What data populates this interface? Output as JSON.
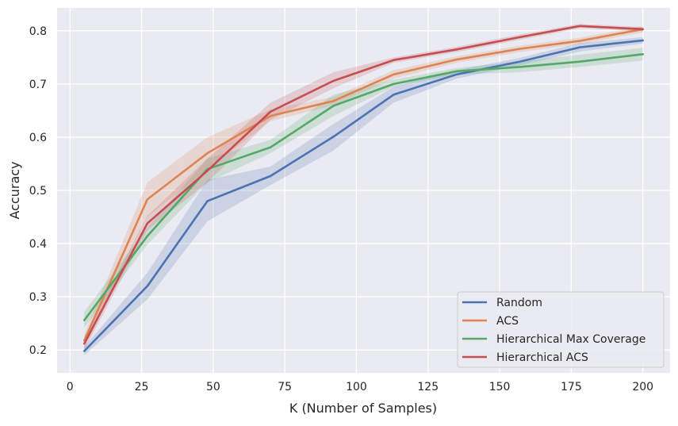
{
  "chart_data": {
    "type": "line",
    "xlabel": "K (Number of Samples)",
    "ylabel": "Accuracy",
    "xlim": [
      -4.5,
      209.5
    ],
    "ylim": [
      0.157,
      0.843
    ],
    "xticks": [
      0,
      25,
      50,
      75,
      100,
      125,
      150,
      175,
      200
    ],
    "xtick_labels": [
      "0",
      "25",
      "50",
      "75",
      "100",
      "125",
      "150",
      "175",
      "200"
    ],
    "yticks": [
      0.2,
      0.3,
      0.4,
      0.5,
      0.6,
      0.7,
      0.8
    ],
    "ytick_labels": [
      "0.2",
      "0.3",
      "0.4",
      "0.5",
      "0.6",
      "0.7",
      "0.8"
    ],
    "grid": true,
    "legend_position": "lower-right",
    "background_color": "#eaeaf2",
    "series": [
      {
        "name": "Random",
        "color": "#4c72b0",
        "x": [
          5,
          27,
          48,
          70,
          92,
          113,
          135,
          157,
          178,
          200
        ],
        "y": [
          0.198,
          0.32,
          0.48,
          0.527,
          0.601,
          0.68,
          0.718,
          0.742,
          0.769,
          0.782
        ],
        "lower": [
          0.19,
          0.295,
          0.442,
          0.51,
          0.575,
          0.665,
          0.71,
          0.735,
          0.761,
          0.776
        ],
        "upper": [
          0.206,
          0.345,
          0.52,
          0.545,
          0.625,
          0.695,
          0.726,
          0.749,
          0.777,
          0.788
        ]
      },
      {
        "name": "ACS",
        "color": "#dd8452",
        "x": [
          5,
          27,
          48,
          70,
          92,
          113,
          135,
          157,
          178,
          200
        ],
        "y": [
          0.218,
          0.483,
          0.57,
          0.64,
          0.668,
          0.718,
          0.746,
          0.766,
          0.781,
          0.803
        ],
        "lower": [
          0.205,
          0.45,
          0.54,
          0.63,
          0.66,
          0.71,
          0.74,
          0.76,
          0.775,
          0.797
        ],
        "upper": [
          0.23,
          0.515,
          0.6,
          0.652,
          0.676,
          0.726,
          0.752,
          0.772,
          0.787,
          0.809
        ]
      },
      {
        "name": "Hierarchical Max Coverage",
        "color": "#55a868",
        "x": [
          5,
          27,
          48,
          70,
          92,
          113,
          135,
          157,
          178,
          200
        ],
        "y": [
          0.256,
          0.414,
          0.54,
          0.581,
          0.659,
          0.7,
          0.724,
          0.732,
          0.742,
          0.756
        ],
        "lower": [
          0.242,
          0.398,
          0.515,
          0.57,
          0.64,
          0.695,
          0.718,
          0.722,
          0.732,
          0.744
        ],
        "upper": [
          0.272,
          0.43,
          0.56,
          0.595,
          0.68,
          0.708,
          0.73,
          0.742,
          0.755,
          0.768
        ]
      },
      {
        "name": "Hierarchical ACS",
        "color": "#c44e52",
        "x": [
          5,
          27,
          48,
          70,
          92,
          113,
          135,
          157,
          178,
          200
        ],
        "y": [
          0.212,
          0.438,
          0.537,
          0.648,
          0.706,
          0.745,
          0.765,
          0.788,
          0.809,
          0.803
        ],
        "lower": [
          0.2,
          0.425,
          0.515,
          0.633,
          0.692,
          0.74,
          0.76,
          0.783,
          0.805,
          0.799
        ],
        "upper": [
          0.224,
          0.452,
          0.56,
          0.665,
          0.722,
          0.75,
          0.77,
          0.793,
          0.813,
          0.807
        ]
      }
    ]
  }
}
